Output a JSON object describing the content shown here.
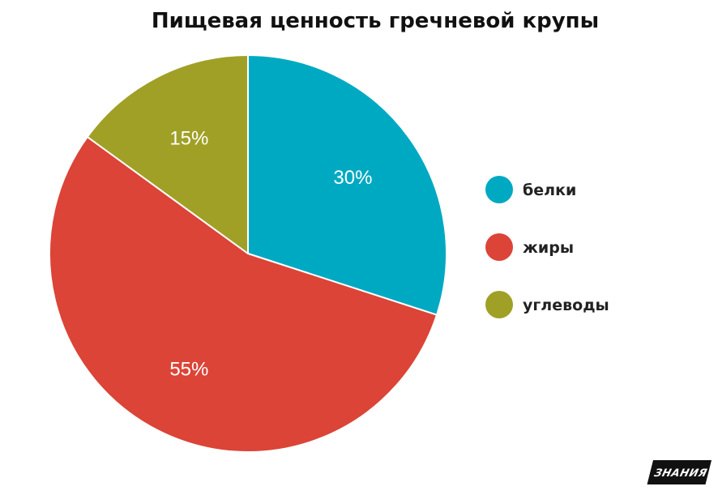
{
  "chart_data": {
    "type": "pie",
    "title": "Пищевая ценность гречневой крупы",
    "categories": [
      "белки",
      "жиры",
      "углеводы"
    ],
    "values": [
      30,
      55,
      15
    ],
    "value_labels": [
      "30%",
      "55%",
      "15%"
    ],
    "colors": [
      "#00a9c2",
      "#db4437",
      "#a0a027"
    ],
    "legend_position": "right",
    "start_angle": "12 o'clock",
    "direction": "clockwise"
  },
  "branding": {
    "logo_text": "ЗНАНИЯ"
  }
}
